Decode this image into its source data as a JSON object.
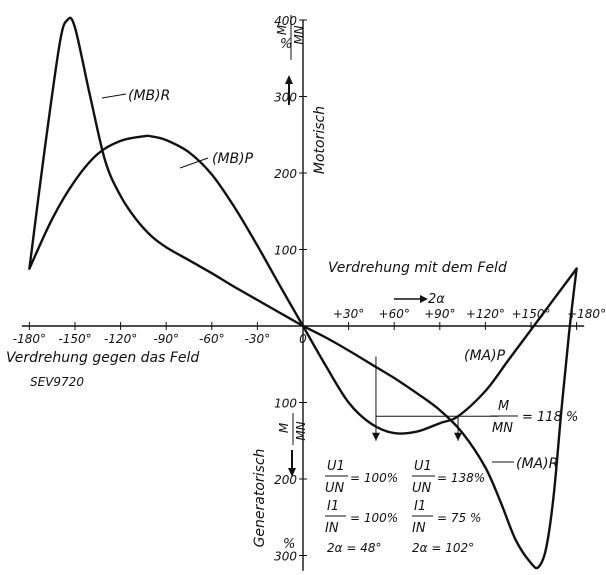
{
  "chart_data": {
    "type": "line",
    "x_unit": "°",
    "y_unit": "%",
    "xlim": [
      -185,
      185
    ],
    "ylim": [
      -320,
      400
    ],
    "x_ticks": [
      {
        "value": -180,
        "label": "-180°"
      },
      {
        "value": -150,
        "label": "-150°"
      },
      {
        "value": -120,
        "label": "-120°"
      },
      {
        "value": -90,
        "label": "-90°"
      },
      {
        "value": -60,
        "label": "-60°"
      },
      {
        "value": -30,
        "label": "-30°"
      },
      {
        "value": 0,
        "label": "0"
      },
      {
        "value": 30,
        "label": "+30°"
      },
      {
        "value": 60,
        "label": "+60°"
      },
      {
        "value": 90,
        "label": "+90°"
      },
      {
        "value": 120,
        "label": "+120°"
      },
      {
        "value": 150,
        "label": "+150°"
      },
      {
        "value": 180,
        "label": "+180°"
      }
    ],
    "y_ticks_upper": [
      {
        "value": 100,
        "label": "100"
      },
      {
        "value": 200,
        "label": "200"
      },
      {
        "value": 300,
        "label": "300"
      },
      {
        "value": 400,
        "label": "400"
      }
    ],
    "y_ticks_lower": [
      {
        "value": -100,
        "label": "100"
      },
      {
        "value": -200,
        "label": "200"
      },
      {
        "value": -300,
        "label": "300"
      }
    ],
    "series": [
      {
        "name": "(MB)R",
        "x": [
          -180,
          -170,
          -160,
          -155,
          -150,
          -140,
          -130,
          -120,
          -110,
          -100,
          -90,
          -75,
          -60,
          -45,
          -30,
          -15,
          0
        ],
        "y": [
          75,
          230,
          370,
          400,
          390,
          300,
          215,
          170,
          140,
          118,
          103,
          86,
          69,
          51,
          34,
          17,
          0
        ]
      },
      {
        "name": "(MB)P",
        "x": [
          -180,
          -165,
          -150,
          -135,
          -120,
          -105,
          -100,
          -90,
          -75,
          -60,
          -45,
          -30,
          -15,
          0
        ],
        "y": [
          75,
          140,
          190,
          225,
          242,
          248,
          248,
          243,
          227,
          198,
          155,
          105,
          52,
          0
        ]
      },
      {
        "name": "(MA)P",
        "x": [
          0,
          15,
          30,
          45,
          60,
          75,
          90,
          102,
          120,
          135,
          150,
          165,
          180
        ],
        "y": [
          0,
          -52,
          -100,
          -128,
          -140,
          -138,
          -127,
          -118,
          -85,
          -45,
          -5,
          35,
          75
        ]
      },
      {
        "name": "(MA)R",
        "x": [
          0,
          15,
          30,
          45,
          60,
          75,
          90,
          105,
          120,
          130,
          140,
          150,
          155,
          160,
          165,
          170,
          175,
          180
        ],
        "y": [
          0,
          -15,
          -32,
          -50,
          -68,
          -88,
          -110,
          -140,
          -185,
          -230,
          -280,
          -310,
          -315,
          -290,
          -220,
          -110,
          -10,
          75
        ]
      }
    ],
    "marks": [
      {
        "type": "vline",
        "x": 48,
        "y_from": -40,
        "y_to": -150
      },
      {
        "type": "vline",
        "x": 102,
        "y_from": -118,
        "y_to": -150
      },
      {
        "type": "hline",
        "y": -118,
        "x_from": 48,
        "x_to": 102
      }
    ],
    "series_labels": {
      "mb_r": "(MB)R",
      "mb_p": "(MB)P",
      "ma_p": "(MA)P",
      "ma_r": "(MA)R"
    },
    "axis_texts": {
      "motorisch": "Motorisch",
      "generatorisch": "Generatorisch",
      "mit_feld": "Verdrehung mit dem Feld",
      "gegen_feld": "Verdrehung gegen das Feld",
      "two_alpha": "2α",
      "m_upper": "M",
      "mn_upper": "MN",
      "pct_upper": "%",
      "m_lower": "M",
      "mn_lower": "MN",
      "pct_lower": "%"
    },
    "annotations": {
      "m_mn_eq": "M",
      "m_mn_eq_den": "MN",
      "m_mn_val": "= 118 %",
      "u1_left_num": "U1",
      "u1_left_den": "UN",
      "u1_left_val": "= 100%",
      "i1_left_num": "I1",
      "i1_left_den": "IN",
      "i1_left_val": "= 100%",
      "alpha_left": "2α = 48°",
      "u1_right_num": "U1",
      "u1_right_den": "UN",
      "u1_right_val": "= 138%",
      "i1_right_num": "I1",
      "i1_right_den": "IN",
      "i1_right_val": "= 75 %",
      "alpha_right": "2α = 102°"
    },
    "reference": "SEV9720"
  }
}
